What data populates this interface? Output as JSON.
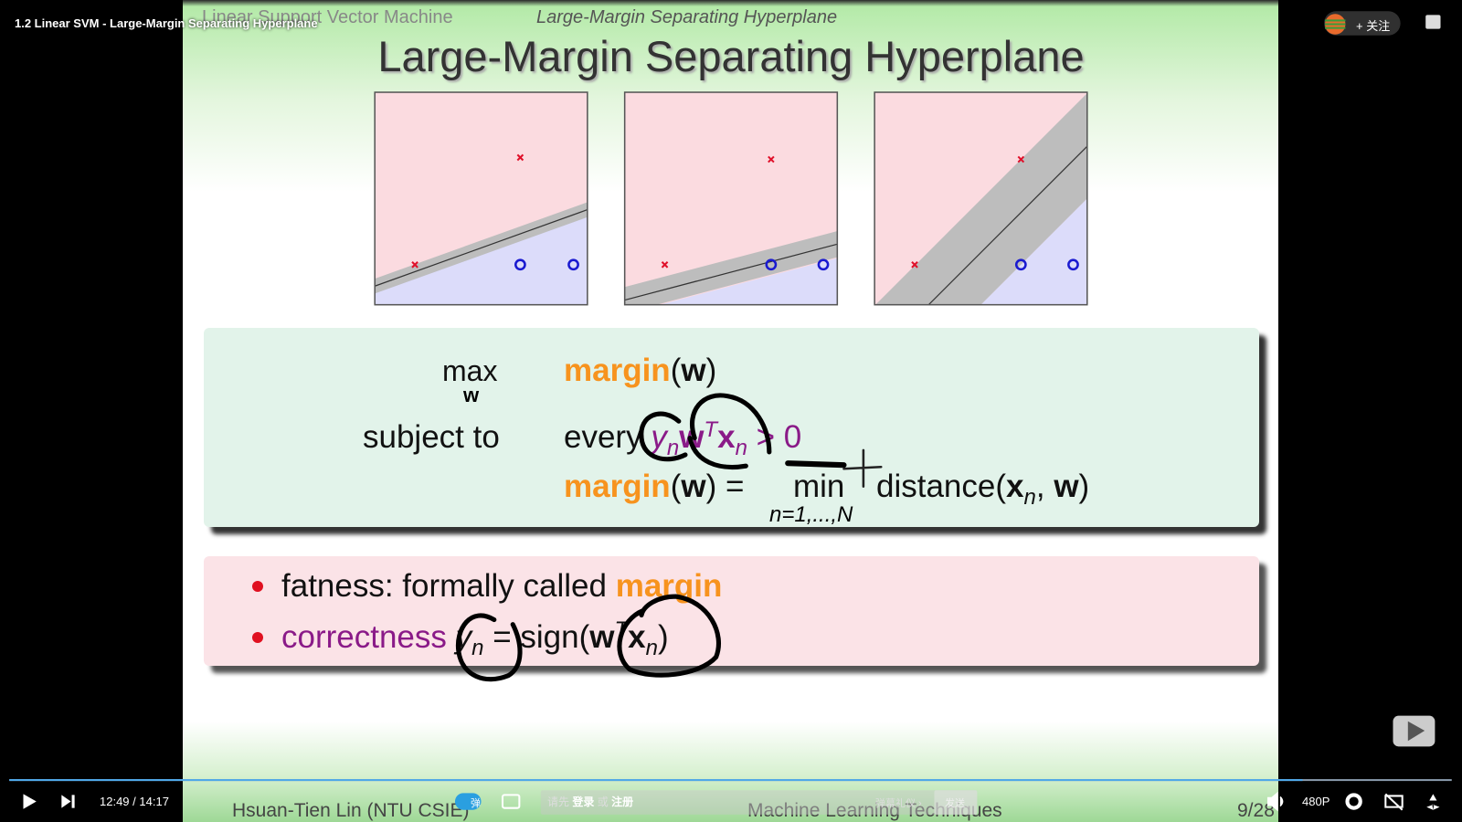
{
  "player": {
    "video_title": "1.2 Linear SVM - Large-Margin Separating Hyperplane",
    "follow": "+ 关注",
    "time_current": "12:49",
    "time_sep": "/",
    "time_total": "14:17",
    "danmaku_toggle": "弹",
    "input_hint": [
      "请先",
      "登录",
      "或",
      "注册"
    ],
    "etiquette": "弹幕礼仪 ›",
    "send": "发送",
    "quality": "480P"
  },
  "slide": {
    "header_left": "Linear Support Vector Machine",
    "header_right": "Large-Margin Separating Hyperplane",
    "title": "Large-Margin Separating Hyperplane",
    "formula": {
      "max": "max",
      "max_sub": "w",
      "objective": [
        "margin",
        "(",
        "w",
        ")"
      ],
      "subject_to": "subject to",
      "every": "every",
      "constraint": [
        "y",
        "n",
        "w",
        "T",
        "x",
        "n",
        " > 0"
      ],
      "definition": [
        "margin",
        "(",
        "w",
        ")",
        " = "
      ],
      "min": "min",
      "min_sub": "n=1,...,N",
      "distance": [
        "distance(",
        "x",
        "n",
        ", ",
        "w",
        ")"
      ]
    },
    "bullets": [
      [
        "fatness: formally called ",
        "margin"
      ],
      [
        "correctness",
        "y",
        "n",
        " = sign(",
        "w",
        "T",
        "x",
        "n",
        ")"
      ]
    ],
    "footer": {
      "author": "Hsuan-Tien Lin (NTU CSIE)",
      "course": "Machine Learning Techniques",
      "page": "9/28"
    }
  }
}
